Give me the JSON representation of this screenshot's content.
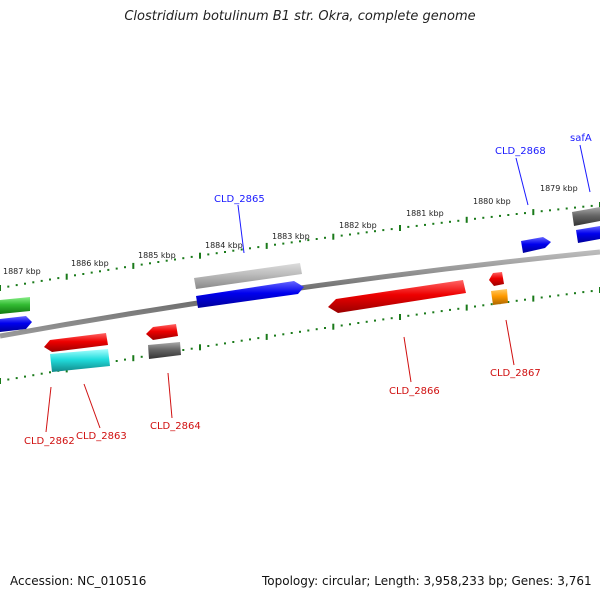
{
  "title": "Clostridium botulinum B1 str. Okra, complete genome",
  "footer": {
    "accession": "Accession: NC_010516",
    "summary": "Topology: circular; Length: 3,958,233 bp; Genes: 3,761"
  },
  "scale_labels": [
    "1887 kbp",
    "1886 kbp",
    "1885 kbp",
    "1884 kbp",
    "1883 kbp",
    "1882 kbp",
    "1881 kbp",
    "1880 kbp",
    "1879 kbp"
  ],
  "gene_labels": {
    "top": [
      "CLD_2865",
      "CLD_2868",
      "safA"
    ],
    "bottom": [
      "CLD_2862",
      "CLD_2863",
      "CLD_2864",
      "CLD_2866",
      "CLD_2867"
    ]
  },
  "colors": {
    "backbone": "#777777",
    "tick": "#1a7a1a",
    "forward_strand": "#1010ee",
    "reverse_strand": "#ee1010",
    "other_gray": "#777777",
    "light_gray": "#bbbbbb",
    "green": "#33bb33",
    "cyan": "#22dddd",
    "orange": "#ff9900"
  }
}
